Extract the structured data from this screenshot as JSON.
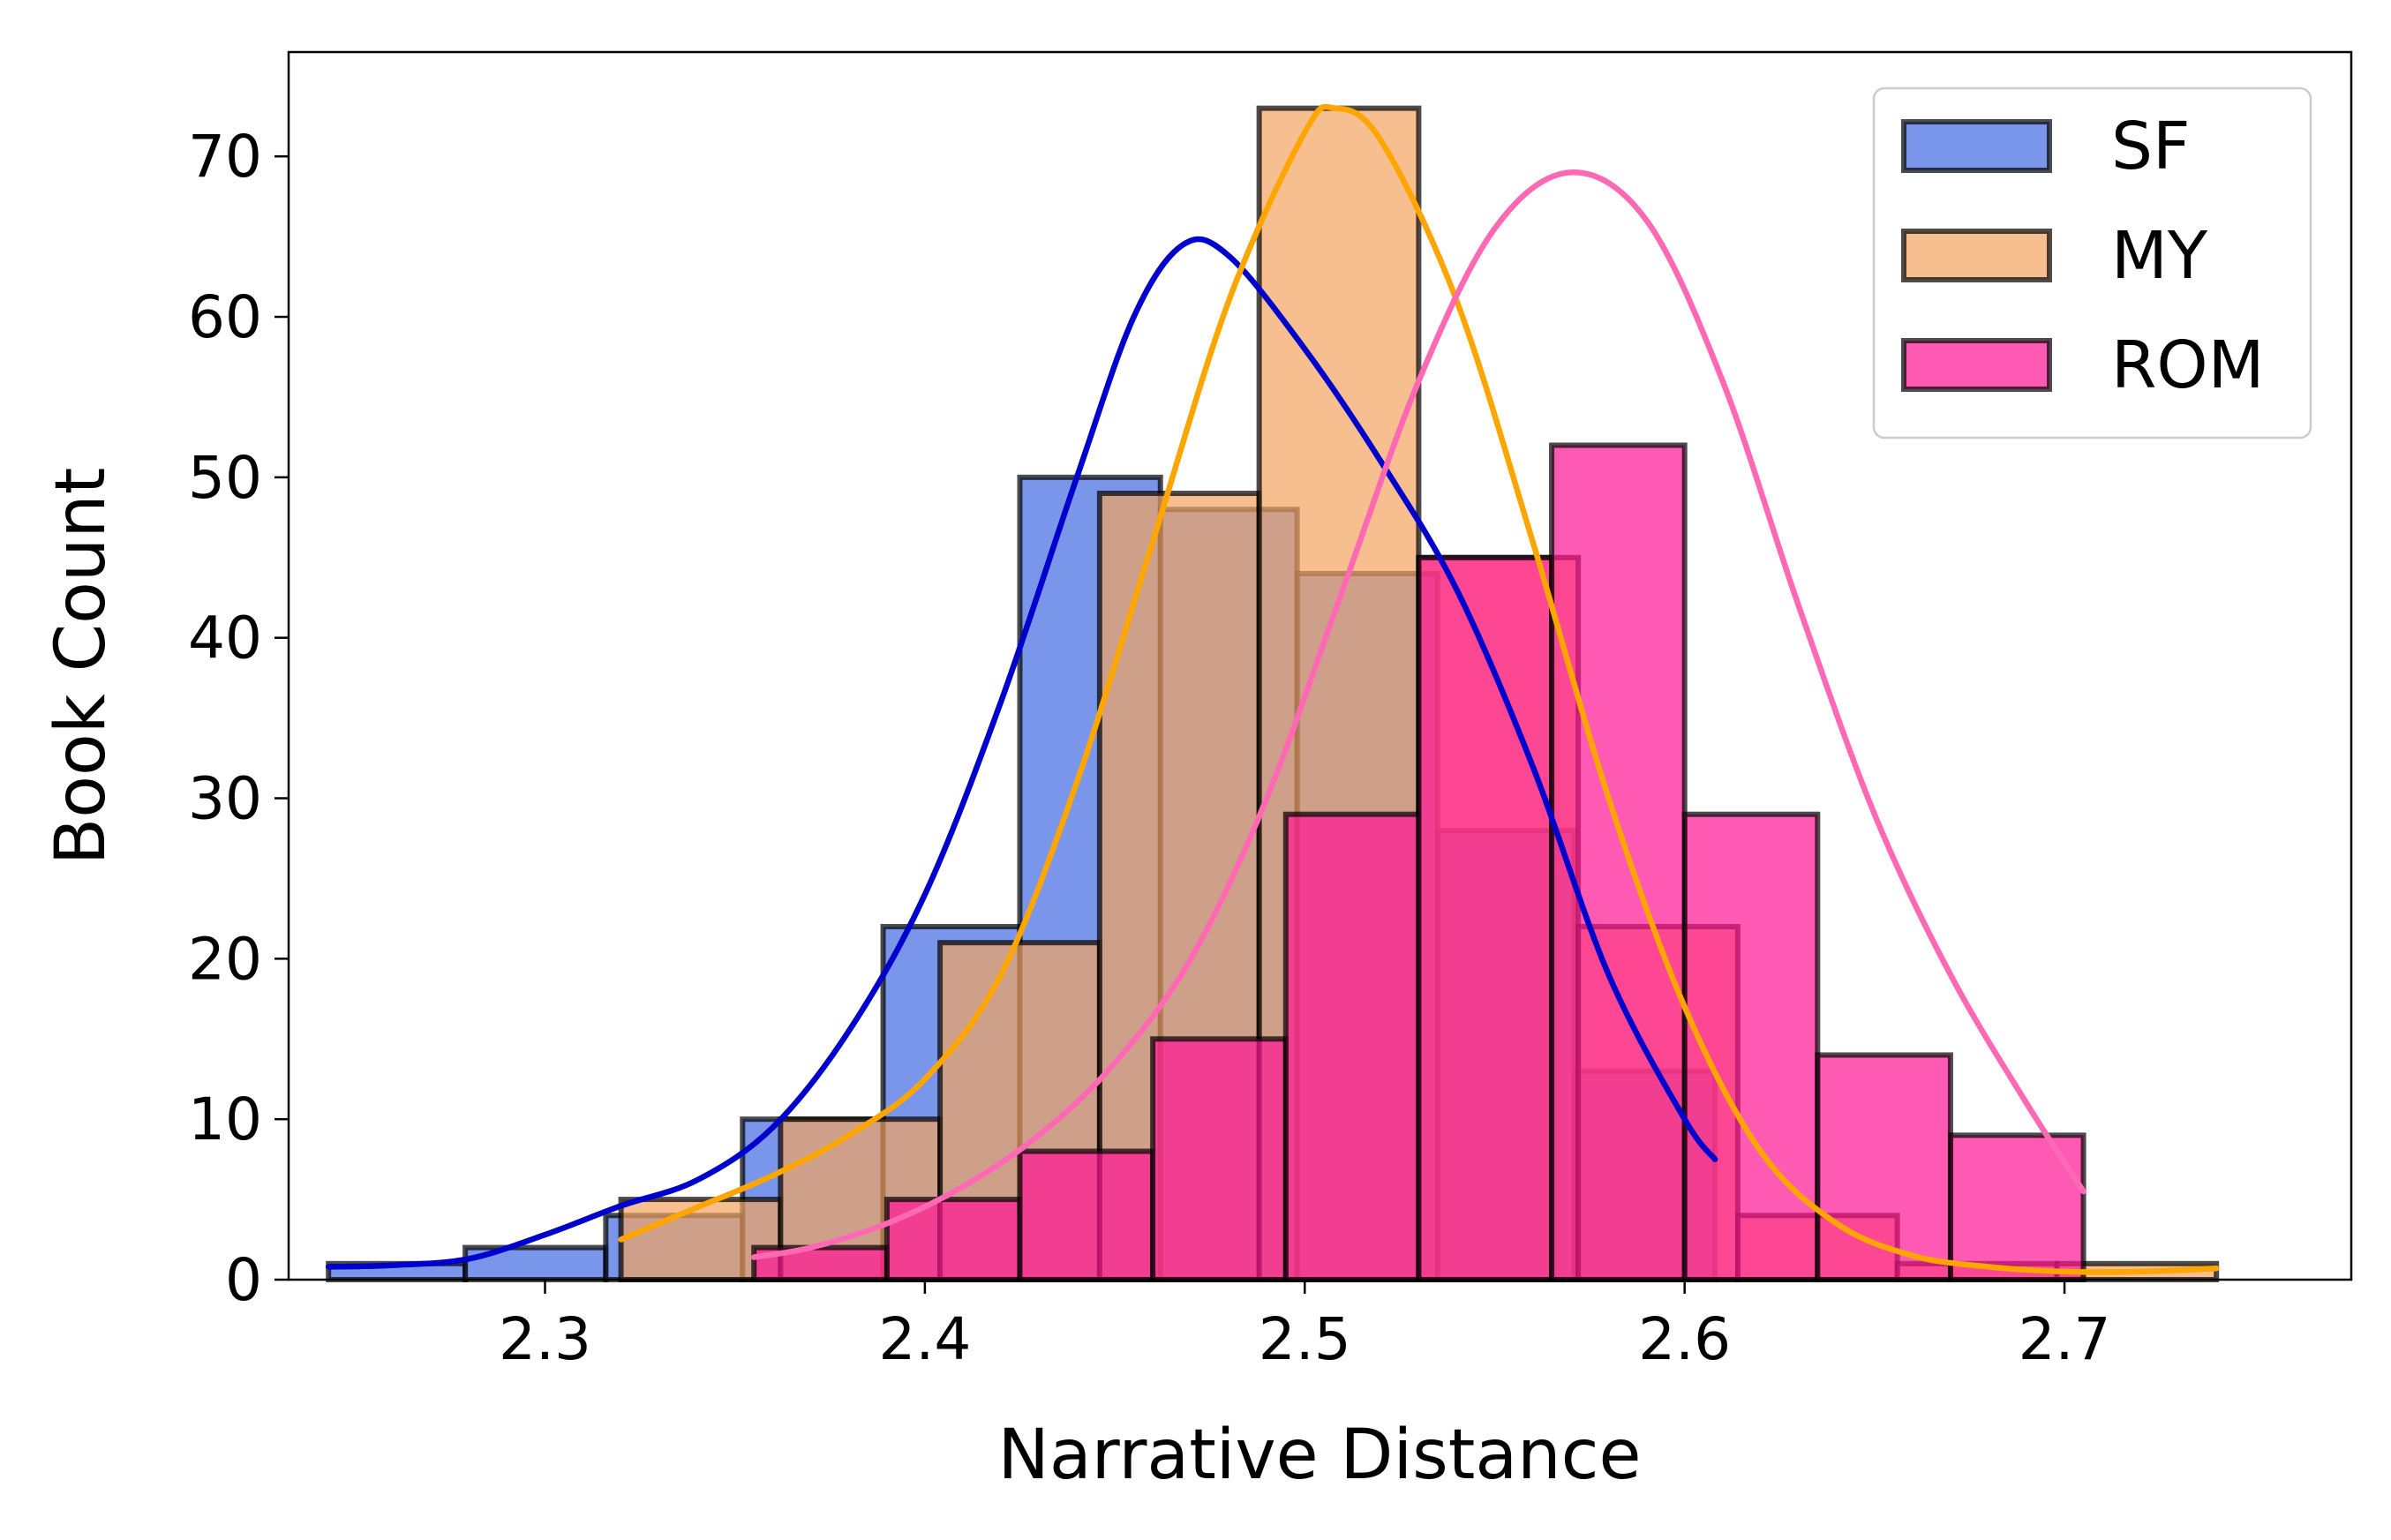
{
  "chart_data": {
    "type": "histogram",
    "title": "",
    "xlabel": "Narrative Distance",
    "ylabel": "Book Count",
    "xlim": [
      2.2325,
      2.7755
    ],
    "ylim": [
      0,
      76.5
    ],
    "xticks": [
      2.3,
      2.4,
      2.5,
      2.6,
      2.7
    ],
    "yticks": [
      0,
      10,
      20,
      30,
      40,
      50,
      60,
      70
    ],
    "legend": {
      "placement": "top-right"
    },
    "series": [
      {
        "name": "SF",
        "fill": "#4169e1",
        "kde_color": "#0000cd",
        "bins": [
          {
            "x0": 2.243,
            "x1": 2.279,
            "count": 1
          },
          {
            "x0": 2.279,
            "x1": 2.316,
            "count": 2
          },
          {
            "x0": 2.316,
            "x1": 2.352,
            "count": 4
          },
          {
            "x0": 2.352,
            "x1": 2.389,
            "count": 10
          },
          {
            "x0": 2.389,
            "x1": 2.425,
            "count": 22
          },
          {
            "x0": 2.425,
            "x1": 2.462,
            "count": 50
          },
          {
            "x0": 2.462,
            "x1": 2.498,
            "count": 48
          },
          {
            "x0": 2.498,
            "x1": 2.535,
            "count": 44
          },
          {
            "x0": 2.535,
            "x1": 2.571,
            "count": 28
          },
          {
            "x0": 2.571,
            "x1": 2.608,
            "count": 13
          }
        ],
        "kde": [
          [
            2.243,
            0.8
          ],
          [
            2.26,
            0.9
          ],
          [
            2.28,
            1.3
          ],
          [
            2.3,
            2.8
          ],
          [
            2.32,
            4.6
          ],
          [
            2.34,
            6.2
          ],
          [
            2.36,
            9.5
          ],
          [
            2.38,
            15.5
          ],
          [
            2.4,
            24.0
          ],
          [
            2.42,
            36.0
          ],
          [
            2.44,
            50.0
          ],
          [
            2.455,
            60.0
          ],
          [
            2.468,
            64.5
          ],
          [
            2.48,
            63.8
          ],
          [
            2.5,
            58.0
          ],
          [
            2.52,
            51.0
          ],
          [
            2.54,
            43.0
          ],
          [
            2.56,
            32.0
          ],
          [
            2.58,
            19.0
          ],
          [
            2.6,
            10.0
          ],
          [
            2.608,
            7.5
          ]
        ]
      },
      {
        "name": "MY",
        "fill": "#f4a460",
        "kde_color": "#ffa500",
        "bins": [
          {
            "x0": 2.32,
            "x1": 2.362,
            "count": 5
          },
          {
            "x0": 2.362,
            "x1": 2.404,
            "count": 10
          },
          {
            "x0": 2.404,
            "x1": 2.446,
            "count": 21
          },
          {
            "x0": 2.446,
            "x1": 2.488,
            "count": 49
          },
          {
            "x0": 2.488,
            "x1": 2.53,
            "count": 73
          },
          {
            "x0": 2.53,
            "x1": 2.572,
            "count": 45
          },
          {
            "x0": 2.572,
            "x1": 2.614,
            "count": 22
          },
          {
            "x0": 2.614,
            "x1": 2.656,
            "count": 4
          },
          {
            "x0": 2.656,
            "x1": 2.698,
            "count": 1
          },
          {
            "x0": 2.698,
            "x1": 2.74,
            "count": 1
          }
        ],
        "kde": [
          [
            2.32,
            2.5
          ],
          [
            2.34,
            4.5
          ],
          [
            2.36,
            6.5
          ],
          [
            2.38,
            9.0
          ],
          [
            2.4,
            12.5
          ],
          [
            2.42,
            19.0
          ],
          [
            2.44,
            31.0
          ],
          [
            2.46,
            46.0
          ],
          [
            2.48,
            61.0
          ],
          [
            2.5,
            71.5
          ],
          [
            2.508,
            73.0
          ],
          [
            2.52,
            71.0
          ],
          [
            2.54,
            61.0
          ],
          [
            2.56,
            46.0
          ],
          [
            2.58,
            30.0
          ],
          [
            2.6,
            17.0
          ],
          [
            2.62,
            8.0
          ],
          [
            2.64,
            3.5
          ],
          [
            2.66,
            1.5
          ],
          [
            2.68,
            0.8
          ],
          [
            2.7,
            0.5
          ],
          [
            2.72,
            0.5
          ],
          [
            2.74,
            0.7
          ]
        ]
      },
      {
        "name": "ROM",
        "fill": "#ff1493",
        "kde_color": "#ff69b4",
        "bins": [
          {
            "x0": 2.355,
            "x1": 2.39,
            "count": 2
          },
          {
            "x0": 2.39,
            "x1": 2.425,
            "count": 5
          },
          {
            "x0": 2.425,
            "x1": 2.46,
            "count": 8
          },
          {
            "x0": 2.46,
            "x1": 2.495,
            "count": 15
          },
          {
            "x0": 2.495,
            "x1": 2.53,
            "count": 29
          },
          {
            "x0": 2.53,
            "x1": 2.565,
            "count": 45
          },
          {
            "x0": 2.565,
            "x1": 2.6,
            "count": 52
          },
          {
            "x0": 2.6,
            "x1": 2.635,
            "count": 29
          },
          {
            "x0": 2.635,
            "x1": 2.67,
            "count": 14
          },
          {
            "x0": 2.67,
            "x1": 2.705,
            "count": 9
          }
        ],
        "kde": [
          [
            2.355,
            1.4
          ],
          [
            2.37,
            2.0
          ],
          [
            2.39,
            3.5
          ],
          [
            2.41,
            5.8
          ],
          [
            2.43,
            9.0
          ],
          [
            2.45,
            13.5
          ],
          [
            2.47,
            20.0
          ],
          [
            2.49,
            30.0
          ],
          [
            2.51,
            43.0
          ],
          [
            2.53,
            56.0
          ],
          [
            2.55,
            65.5
          ],
          [
            2.57,
            69.0
          ],
          [
            2.59,
            66.0
          ],
          [
            2.61,
            56.0
          ],
          [
            2.63,
            42.0
          ],
          [
            2.65,
            29.0
          ],
          [
            2.67,
            19.0
          ],
          [
            2.69,
            11.0
          ],
          [
            2.705,
            5.5
          ]
        ]
      }
    ]
  }
}
